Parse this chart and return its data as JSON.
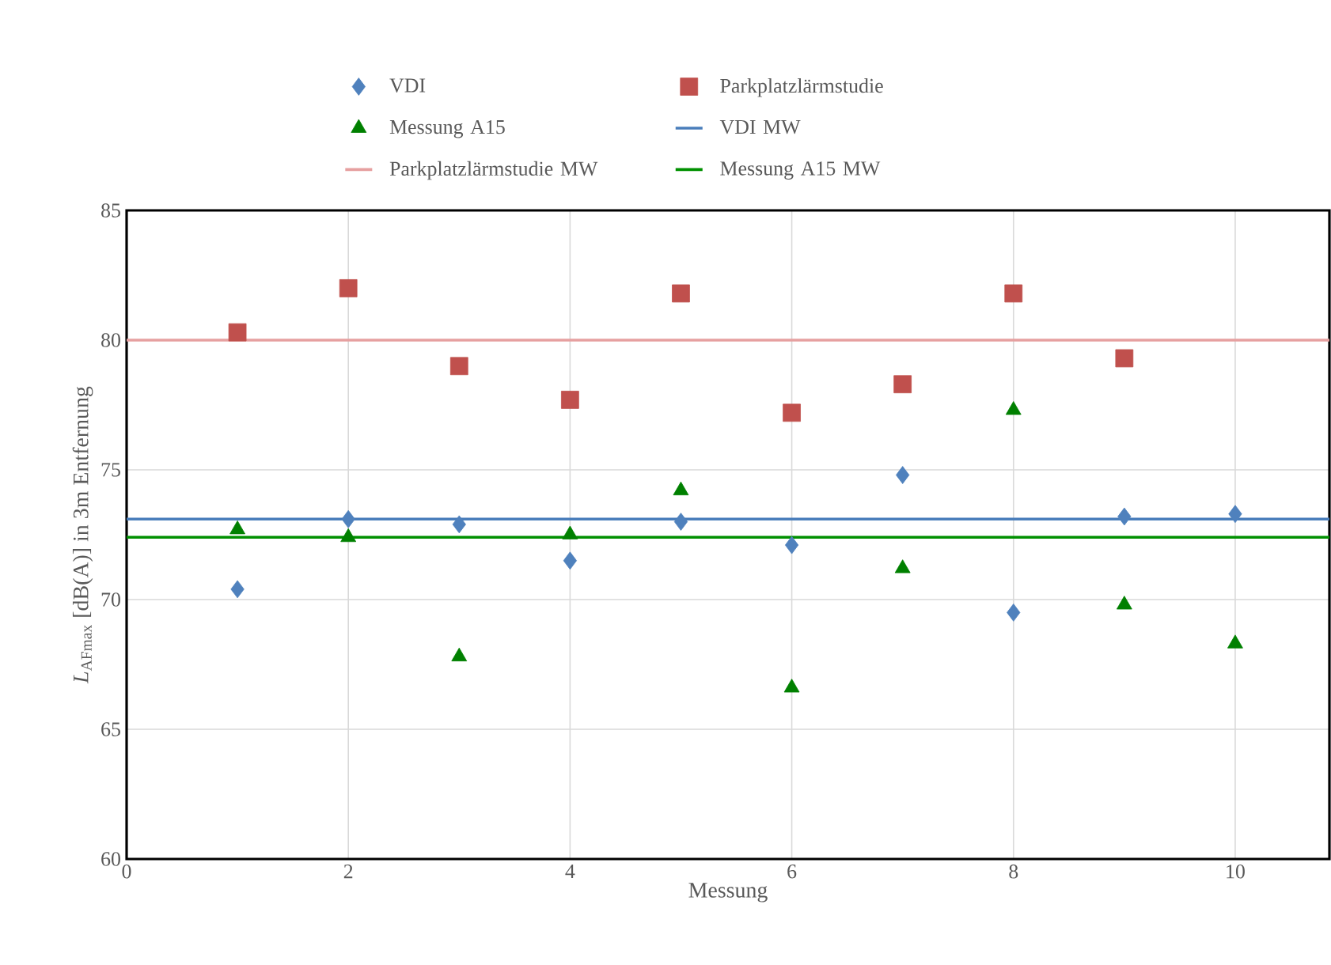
{
  "chart_data": {
    "type": "scatter",
    "xlabel": "Messung",
    "ylabel": "*L*$_{AFmax}$ [dB(A)] in 3m Entfernung",
    "x": [
      1,
      2,
      3,
      4,
      5,
      6,
      7,
      8,
      9,
      10
    ],
    "series": [
      {
        "name": "VDI",
        "marker": "diamond",
        "color": "#4f81bd",
        "values": [
          70.4,
          73.1,
          72.9,
          71.5,
          73.0,
          72.1,
          74.8,
          69.5,
          73.2,
          73.3
        ]
      },
      {
        "name": "Parkplatzlärmstudie",
        "marker": "square",
        "color": "#c0504d",
        "values": [
          80.3,
          82.0,
          79.0,
          77.7,
          81.8,
          77.2,
          78.3,
          81.8,
          79.3,
          null
        ]
      },
      {
        "name": "Messung A15",
        "marker": "triangle",
        "color": "#008000",
        "values": [
          72.7,
          72.4,
          67.8,
          72.5,
          74.2,
          66.6,
          71.2,
          77.3,
          69.8,
          68.3
        ]
      }
    ],
    "ref_lines": [
      {
        "axis": "y",
        "value": 73.1,
        "label": "VDI MW",
        "color": "#4a7ebb"
      },
      {
        "axis": "y",
        "value": 80.0,
        "label": "Parkplatzlärmstudie MW",
        "color": "#e6a0a0"
      },
      {
        "axis": "y",
        "value": 72.4,
        "label": "Messung A15 MW",
        "color": "#009000"
      }
    ],
    "xlim": [
      0,
      10.85
    ],
    "ylim": [
      60,
      85
    ],
    "xticks": [
      0,
      2,
      4,
      6,
      8,
      10
    ],
    "yticks": [
      60,
      65,
      70,
      75,
      80,
      85
    ],
    "grid": true,
    "legend": "top"
  }
}
